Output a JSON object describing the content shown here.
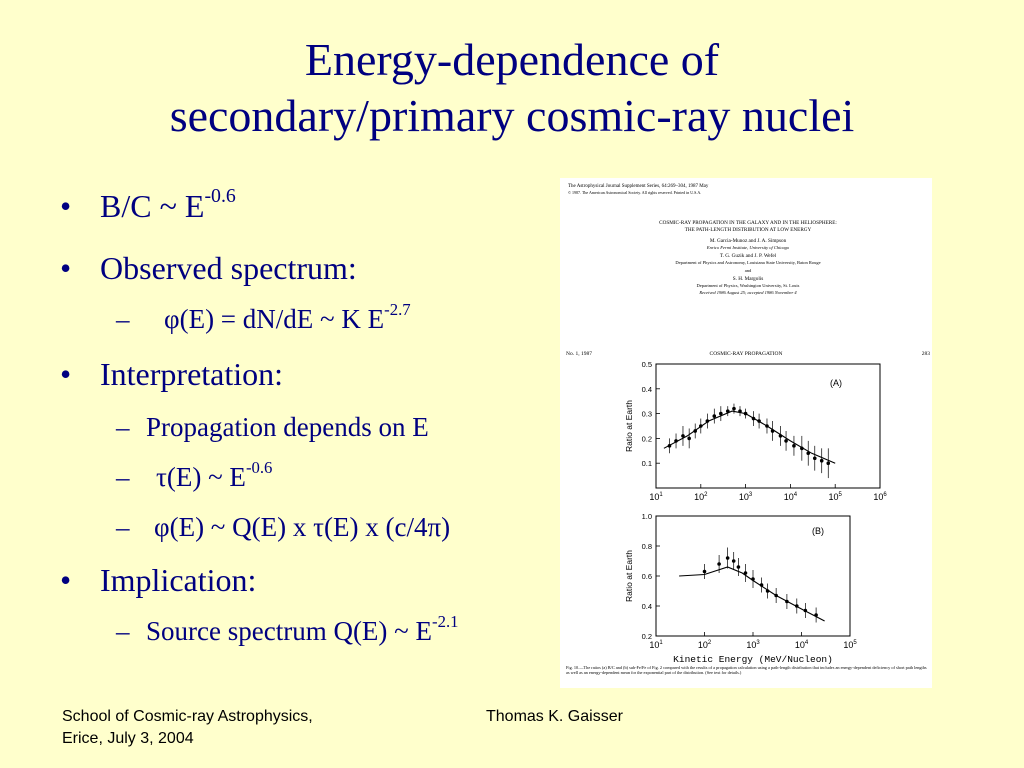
{
  "title": {
    "line1": "Energy-dependence of",
    "line2": "secondary/primary cosmic-ray nuclei"
  },
  "bullets": {
    "bc_ratio": {
      "base": "B/C ~ E",
      "exp": "-0.6"
    },
    "observed": {
      "label": "Observed spectrum:"
    },
    "phi_spectrum": {
      "pre": "φ(E) = dN/dE ~ K E",
      "exp": "-2.7"
    },
    "interpretation": {
      "label": "Interpretation:"
    },
    "propagation": {
      "label": "Propagation depends on E"
    },
    "tau": {
      "pre": "τ(E) ~ E",
      "exp": "-0.6"
    },
    "phi_relation": {
      "label": "φ(E) ~ Q(E) x τ(E) x (c/4π)"
    },
    "implication": {
      "label": "Implication:"
    },
    "source": {
      "pre": "Source spectrum Q(E) ~ E",
      "exp": "-2.1"
    }
  },
  "paper": {
    "journal": "The Astrophysical Journal Supplement Series, 64:269–304, 1987 May",
    "copyright": "© 1987. The American Astronomical Society. All rights reserved. Printed in U.S.A.",
    "title_line1": "COSMIC-RAY PROPAGATION IN THE GALAXY AND IN THE HELIOSPHERE:",
    "title_line2": "THE PATH-LENGTH DISTRIBUTION AT LOW ENERGY",
    "authors1": "M. Garcia-Munoz and J. A. Simpson",
    "affil1": "Enrico Fermi Institute, University of Chicago",
    "authors2": "T. G. Guzik and J. P. Wefel",
    "affil2": "Department of Physics and Astronomy, Louisiana State University, Baton Rouge",
    "and": "and",
    "authors3": "S. H. Margolis",
    "affil3": "Department of Physics, Washington University, St. Louis",
    "received": "Received 1986 August 25; accepted 1986 November 4",
    "issue": "No. 1, 1987",
    "running_head": "COSMIC-RAY PROPAGATION",
    "page": "283",
    "caption": "Fig. 10.—The ratios (a) B/C and (b) sub-Fe/Fe of Fig. 2 compared with the results of a propagation calculation using a path-length distribution that includes an energy-dependent deficiency of short path lengths as well as an energy-dependent mean for the exponential part of the distribution. (See text for details.)"
  },
  "chart_data": [
    {
      "type": "scatter",
      "panel_label": "(A)",
      "ylabel": "Ratio at Earth",
      "xscale": "log",
      "xlim": [
        10,
        1000000
      ],
      "x_ticks": [
        10,
        100,
        1000,
        10000,
        100000,
        1000000
      ],
      "ylim": [
        0,
        0.5
      ],
      "y_ticks": [
        0.1,
        0.2,
        0.3,
        0.4,
        0.5
      ],
      "grid": false,
      "points": [
        {
          "x": 20,
          "y": 0.17,
          "err": 0.03
        },
        {
          "x": 28,
          "y": 0.19,
          "err": 0.03
        },
        {
          "x": 40,
          "y": 0.21,
          "err": 0.04
        },
        {
          "x": 55,
          "y": 0.2,
          "err": 0.04
        },
        {
          "x": 75,
          "y": 0.23,
          "err": 0.03
        },
        {
          "x": 100,
          "y": 0.25,
          "err": 0.03
        },
        {
          "x": 140,
          "y": 0.27,
          "err": 0.03
        },
        {
          "x": 200,
          "y": 0.29,
          "err": 0.03
        },
        {
          "x": 280,
          "y": 0.3,
          "err": 0.03
        },
        {
          "x": 400,
          "y": 0.31,
          "err": 0.02
        },
        {
          "x": 550,
          "y": 0.32,
          "err": 0.02
        },
        {
          "x": 750,
          "y": 0.31,
          "err": 0.02
        },
        {
          "x": 1000,
          "y": 0.3,
          "err": 0.02
        },
        {
          "x": 1500,
          "y": 0.28,
          "err": 0.03
        },
        {
          "x": 2000,
          "y": 0.27,
          "err": 0.03
        },
        {
          "x": 3000,
          "y": 0.25,
          "err": 0.03
        },
        {
          "x": 4000,
          "y": 0.23,
          "err": 0.04
        },
        {
          "x": 6000,
          "y": 0.21,
          "err": 0.04
        },
        {
          "x": 8000,
          "y": 0.19,
          "err": 0.04
        },
        {
          "x": 12000,
          "y": 0.17,
          "err": 0.04
        },
        {
          "x": 18000,
          "y": 0.16,
          "err": 0.05
        },
        {
          "x": 25000,
          "y": 0.14,
          "err": 0.05
        },
        {
          "x": 35000,
          "y": 0.12,
          "err": 0.05
        },
        {
          "x": 50000,
          "y": 0.11,
          "err": 0.05
        },
        {
          "x": 70000,
          "y": 0.1,
          "err": 0.06
        }
      ],
      "model": [
        {
          "x": 15,
          "y": 0.16
        },
        {
          "x": 50,
          "y": 0.21
        },
        {
          "x": 150,
          "y": 0.27
        },
        {
          "x": 500,
          "y": 0.31
        },
        {
          "x": 1000,
          "y": 0.3
        },
        {
          "x": 3000,
          "y": 0.25
        },
        {
          "x": 10000,
          "y": 0.19
        },
        {
          "x": 30000,
          "y": 0.14
        },
        {
          "x": 100000,
          "y": 0.1
        }
      ]
    },
    {
      "type": "scatter",
      "panel_label": "(B)",
      "ylabel": "Ratio at Earth",
      "xlabel": "Kinetic Energy (MeV/Nucleon)",
      "xscale": "log",
      "xlim": [
        10,
        100000
      ],
      "x_ticks": [
        10,
        100,
        1000,
        10000,
        100000
      ],
      "ylim": [
        0.2,
        1.0
      ],
      "y_ticks": [
        0.2,
        0.4,
        0.6,
        0.8,
        1.0
      ],
      "grid": false,
      "points": [
        {
          "x": 100,
          "y": 0.63,
          "err": 0.05
        },
        {
          "x": 200,
          "y": 0.68,
          "err": 0.06
        },
        {
          "x": 300,
          "y": 0.72,
          "err": 0.07
        },
        {
          "x": 400,
          "y": 0.7,
          "err": 0.06
        },
        {
          "x": 500,
          "y": 0.66,
          "err": 0.06
        },
        {
          "x": 700,
          "y": 0.62,
          "err": 0.06
        },
        {
          "x": 1000,
          "y": 0.58,
          "err": 0.06
        },
        {
          "x": 1500,
          "y": 0.54,
          "err": 0.05
        },
        {
          "x": 2000,
          "y": 0.5,
          "err": 0.05
        },
        {
          "x": 3000,
          "y": 0.47,
          "err": 0.05
        },
        {
          "x": 5000,
          "y": 0.43,
          "err": 0.05
        },
        {
          "x": 8000,
          "y": 0.4,
          "err": 0.05
        },
        {
          "x": 12000,
          "y": 0.37,
          "err": 0.05
        },
        {
          "x": 20000,
          "y": 0.34,
          "err": 0.05
        }
      ],
      "model": [
        {
          "x": 30,
          "y": 0.6
        },
        {
          "x": 100,
          "y": 0.61
        },
        {
          "x": 300,
          "y": 0.66
        },
        {
          "x": 600,
          "y": 0.62
        },
        {
          "x": 1000,
          "y": 0.57
        },
        {
          "x": 3000,
          "y": 0.47
        },
        {
          "x": 10000,
          "y": 0.38
        },
        {
          "x": 30000,
          "y": 0.3
        }
      ]
    }
  ],
  "footer": {
    "school_line1": "School of Cosmic-ray Astrophysics,",
    "school_line2": "Erice, July 3, 2004",
    "author": "Thomas K. Gaisser"
  }
}
